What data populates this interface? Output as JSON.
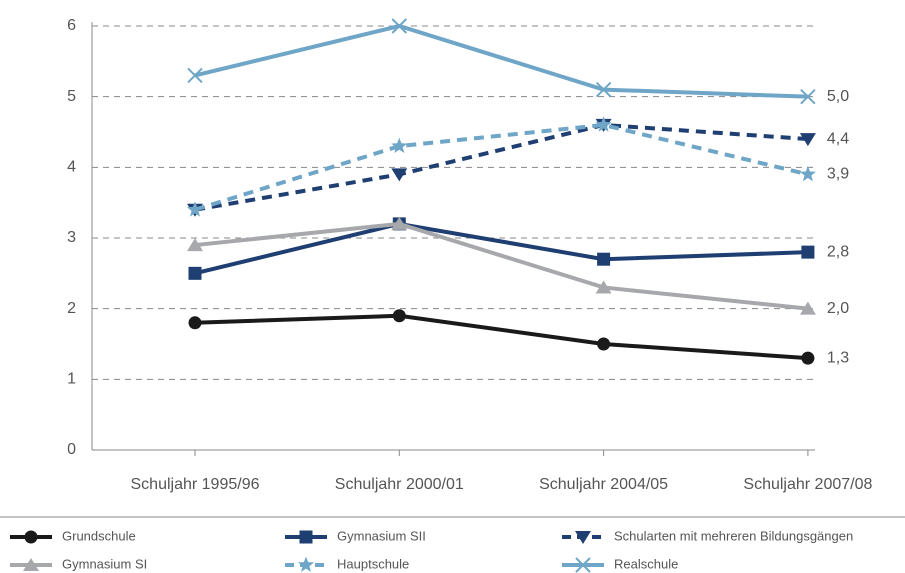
{
  "chart_data": {
    "type": "line",
    "categories": [
      "Schuljahr 1995/96",
      "Schuljahr 2000/01",
      "Schuljahr 2004/05",
      "Schuljahr 2007/08"
    ],
    "series": [
      {
        "name": "Grundschule",
        "color": "#1a1a1a",
        "marker": "circle",
        "dashed": false,
        "values": [
          1.8,
          1.9,
          1.5,
          1.3
        ],
        "value_labels": [
          null,
          null,
          null,
          "1,3"
        ]
      },
      {
        "name": "Gymnasium SII",
        "color": "#1f3f73",
        "marker": "square",
        "dashed": false,
        "values": [
          2.5,
          3.2,
          2.7,
          2.8
        ],
        "value_labels": [
          null,
          null,
          null,
          "2,8"
        ]
      },
      {
        "name": "Schularten mit mehreren Bildungsgängen",
        "color": "#1f3f73",
        "marker": "triangle-down",
        "dashed": true,
        "values": [
          3.4,
          3.9,
          4.6,
          4.4
        ],
        "value_labels": [
          null,
          null,
          null,
          "4,4"
        ]
      },
      {
        "name": "Gymnasium SI",
        "color": "#a6a8ab",
        "marker": "triangle-up",
        "dashed": false,
        "values": [
          2.9,
          3.2,
          2.3,
          2.0
        ],
        "value_labels": [
          null,
          null,
          null,
          "2,0"
        ]
      },
      {
        "name": "Hauptschule",
        "color": "#6fa6c8",
        "marker": "star",
        "dashed": true,
        "values": [
          3.4,
          4.3,
          4.6,
          3.9
        ],
        "value_labels": [
          null,
          null,
          null,
          "3,9"
        ]
      },
      {
        "name": "Realschule",
        "color": "#6fa6c8",
        "marker": "x",
        "dashed": false,
        "values": [
          5.3,
          6.0,
          5.1,
          5.0
        ],
        "value_labels": [
          null,
          null,
          null,
          "5,0"
        ]
      }
    ],
    "ylim": [
      0,
      6
    ],
    "yticks": [
      0,
      1,
      2,
      3,
      4,
      5,
      6
    ],
    "grid": true,
    "legend": "bottom"
  }
}
